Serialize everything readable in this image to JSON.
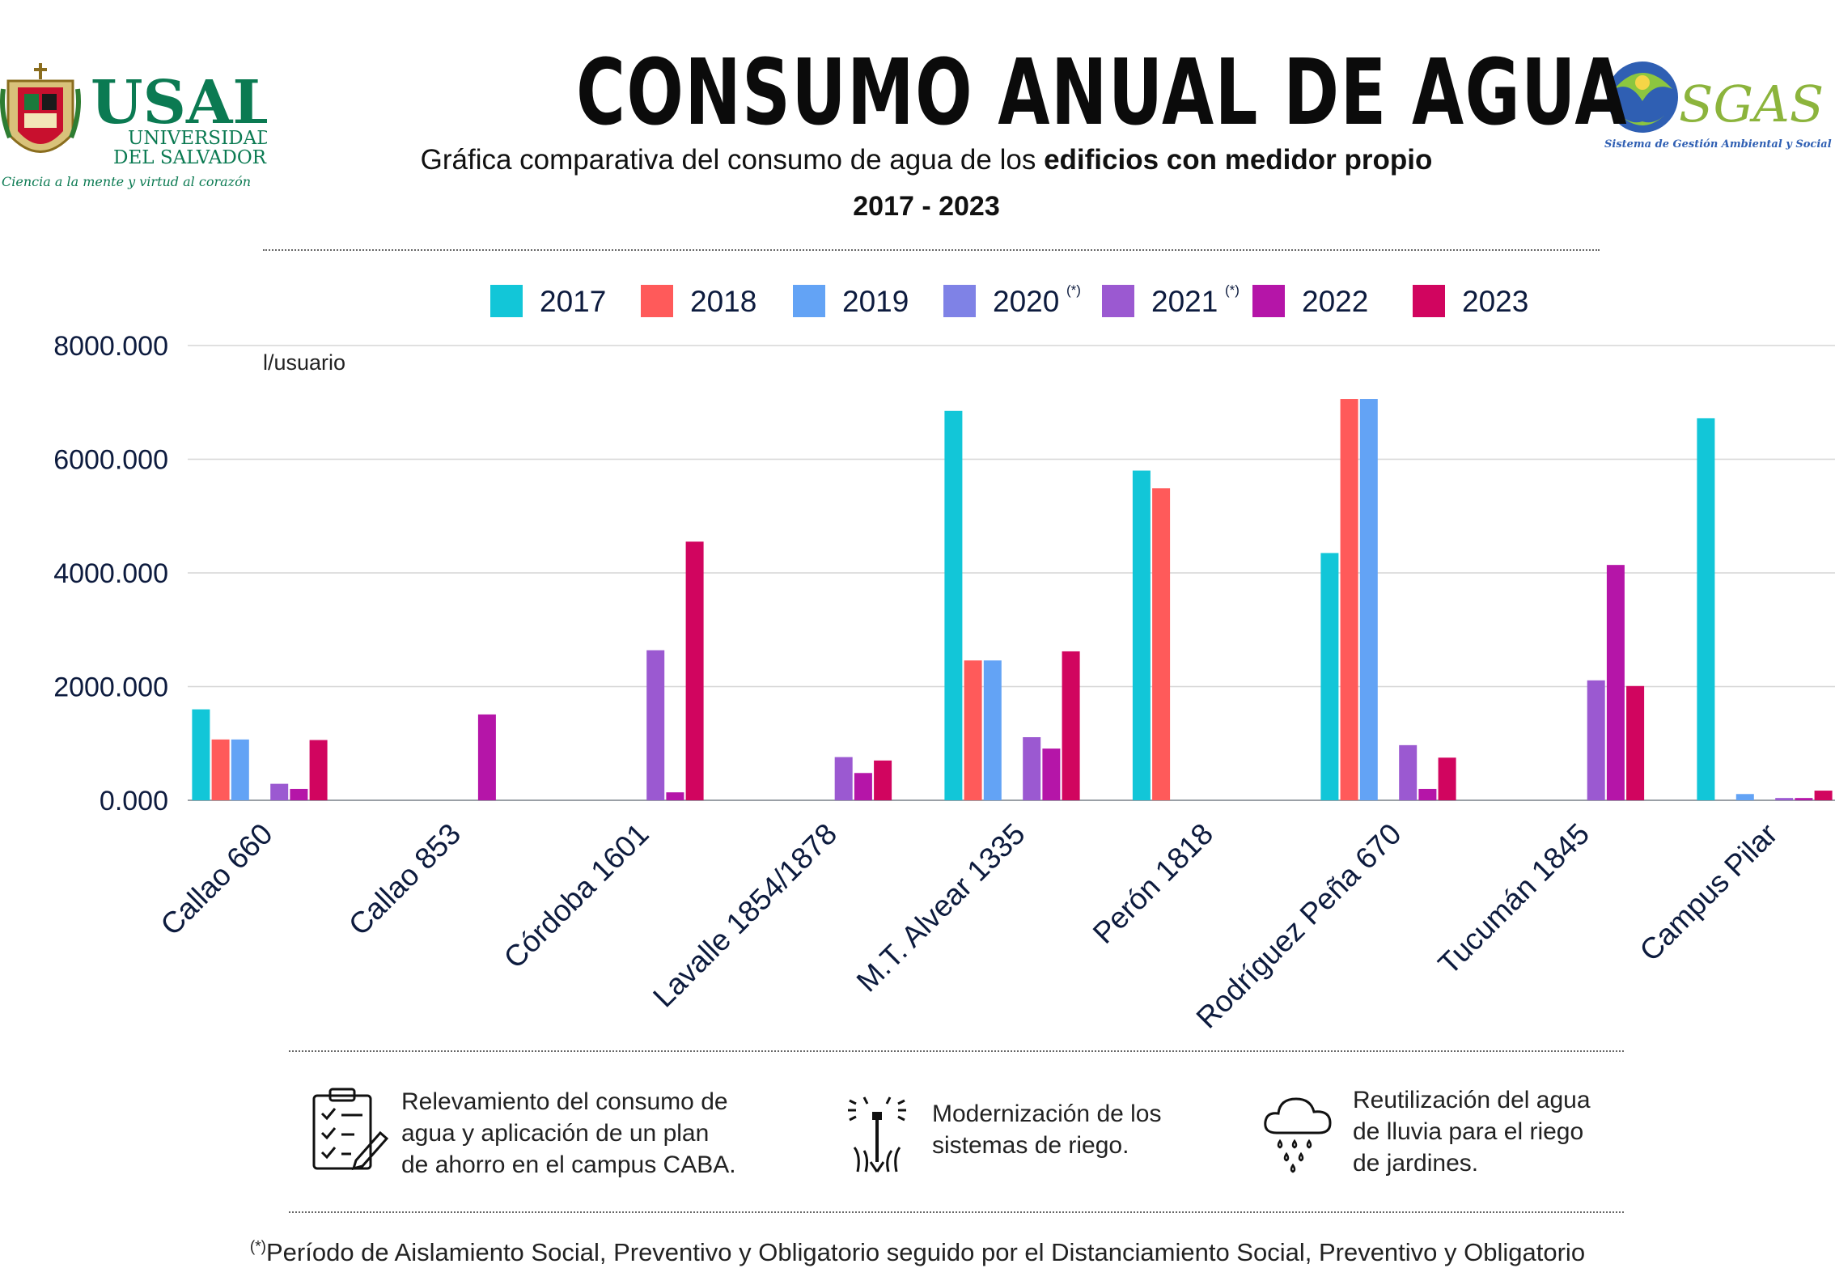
{
  "header": {
    "title": "CONSUMO ANUAL DE AGUA",
    "subtitle_prefix": "Gráfica comparativa del consumo de agua de los ",
    "subtitle_bold": "edificios con medidor propio",
    "years_range": "2017 - 2023"
  },
  "logos": {
    "usal": {
      "name": "USAL",
      "line1": "UNIVERSIDAD",
      "line2": "DEL SALVADOR",
      "motto": "Ciencia a la mente y virtud al corazón"
    },
    "sgas": {
      "name": "SGAS",
      "tagline": "Sistema de Gestión Ambiental y Social"
    }
  },
  "chart_data": {
    "type": "bar",
    "title": "CONSUMO ANUAL DE AGUA",
    "ylabel": "l/usuario",
    "xlabel": "",
    "ylim": [
      0,
      8000
    ],
    "yticks": [
      0,
      2000,
      4000,
      6000,
      8000
    ],
    "ytick_labels": [
      "0.000",
      "2000.000",
      "4000.000",
      "6000.000",
      "8000.000"
    ],
    "grid": true,
    "legend_position": "top",
    "categories": [
      "Callao 660",
      "Callao 853",
      "Córdoba 1601",
      "Lavalle 1854/1878",
      "M.T. Alvear 1335",
      "Perón 1818",
      "Rodríguez Peña 670",
      "Tucumán 1845",
      "Campus Pilar"
    ],
    "series": [
      {
        "name": "2017",
        "note": "",
        "color": "#12c6d8",
        "values": [
          1600,
          0,
          0,
          0,
          6850,
          5800,
          4350,
          0,
          6720
        ]
      },
      {
        "name": "2018",
        "note": "",
        "color": "#ff5a5a",
        "values": [
          1070,
          0,
          0,
          0,
          2460,
          5490,
          7060,
          0,
          0
        ]
      },
      {
        "name": "2019",
        "note": "",
        "color": "#63a3f5",
        "values": [
          1070,
          0,
          0,
          0,
          2460,
          0,
          7060,
          0,
          110
        ]
      },
      {
        "name": "2020",
        "note": "(*)",
        "color": "#7f82e6",
        "values": [
          0,
          0,
          0,
          0,
          0,
          0,
          0,
          0,
          0
        ]
      },
      {
        "name": "2021",
        "note": "(*)",
        "color": "#9b59d1",
        "values": [
          290,
          0,
          2640,
          760,
          1110,
          0,
          970,
          2110,
          40
        ]
      },
      {
        "name": "2022",
        "note": "",
        "color": "#b515a8",
        "values": [
          200,
          1510,
          140,
          480,
          910,
          0,
          200,
          4140,
          40
        ]
      },
      {
        "name": "2023",
        "note": "",
        "color": "#d1055f",
        "values": [
          1060,
          0,
          4550,
          700,
          2620,
          0,
          750,
          2010,
          170
        ]
      }
    ]
  },
  "initiatives": [
    {
      "icon": "checklist-clipboard-icon",
      "lines": [
        "Relevamiento del consumo de",
        "agua y aplicación de un plan",
        "de ahorro en el campus CABA."
      ]
    },
    {
      "icon": "irrigation-sprinkler-icon",
      "lines": [
        "Modernización de los",
        "sistemas de riego."
      ]
    },
    {
      "icon": "rain-cloud-icon",
      "lines": [
        "Reutilización del agua",
        "de lluvia para el riego",
        "de jardines."
      ]
    }
  ],
  "footnote": {
    "mark": "(*)",
    "text": "Período de Aislamiento Social, Preventivo y Obligatorio seguido por el Distanciamiento Social, Preventivo y Obligatorio"
  }
}
